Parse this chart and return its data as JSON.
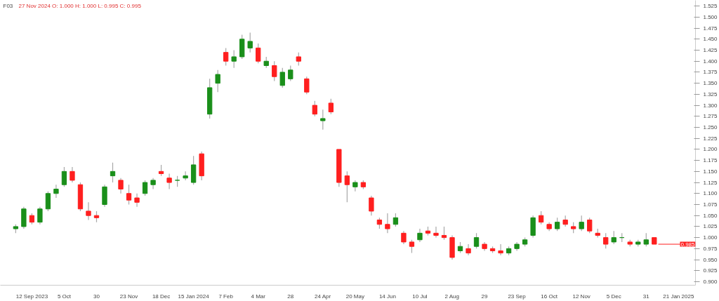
{
  "chart_data": {
    "type": "candlestick",
    "title": "F03",
    "subtitle": "27 Nov 2024   O: 1.000   H: 1.000   L: 0.995   C: 0.995",
    "categories": [
      null,
      null,
      "12 Sep 2023",
      null,
      null,
      null,
      "5 Oct",
      null,
      null,
      null,
      "30",
      null,
      null,
      null,
      "23 Nov",
      null,
      null,
      null,
      "18 Dec",
      null,
      null,
      null,
      "15 Jan 2024",
      null,
      null,
      null,
      "7 Feb",
      null,
      null,
      null,
      "4 Mar",
      null,
      null,
      null,
      "28",
      null,
      null,
      null,
      "24 Apr",
      null,
      null,
      null,
      "20 May",
      null,
      null,
      null,
      "14 Jun",
      null,
      null,
      null,
      "10 Jul",
      null,
      null,
      null,
      "2 Aug",
      null,
      null,
      null,
      "29",
      null,
      null,
      null,
      "23 Sep",
      null,
      null,
      null,
      "16 Oct",
      null,
      null,
      null,
      "12 Nov",
      null,
      null,
      null,
      "5 Dec",
      null,
      null,
      null,
      "31",
      null,
      null,
      null,
      "21 Jan 2025"
    ],
    "ohlc": [
      [
        1.02,
        1.03,
        1.01,
        1.025
      ],
      [
        1.025,
        1.07,
        1.02,
        1.065
      ],
      [
        1.05,
        1.055,
        1.03,
        1.035
      ],
      [
        1.035,
        1.07,
        1.03,
        1.065
      ],
      [
        1.065,
        1.105,
        1.06,
        1.1
      ],
      [
        1.1,
        1.12,
        1.09,
        1.11
      ],
      [
        1.12,
        1.16,
        1.115,
        1.15
      ],
      [
        1.15,
        1.16,
        1.125,
        1.13
      ],
      [
        1.12,
        1.125,
        1.06,
        1.065
      ],
      [
        1.06,
        1.08,
        1.04,
        1.05
      ],
      [
        1.05,
        1.06,
        1.035,
        1.045
      ],
      [
        1.075,
        1.12,
        1.07,
        1.115
      ],
      [
        1.14,
        1.17,
        1.125,
        1.15
      ],
      [
        1.13,
        1.135,
        1.1,
        1.11
      ],
      [
        1.1,
        1.12,
        1.075,
        1.085
      ],
      [
        1.09,
        1.1,
        1.07,
        1.08
      ],
      [
        1.1,
        1.13,
        1.095,
        1.125
      ],
      [
        1.12,
        1.135,
        1.11,
        1.13
      ],
      [
        1.15,
        1.165,
        1.14,
        1.145
      ],
      [
        1.135,
        1.145,
        1.11,
        1.125
      ],
      [
        1.13,
        1.14,
        1.115,
        1.13
      ],
      [
        1.135,
        1.15,
        1.13,
        1.14
      ],
      [
        1.125,
        1.185,
        1.12,
        1.165
      ],
      [
        1.19,
        1.195,
        1.13,
        1.14
      ],
      [
        1.28,
        1.36,
        1.27,
        1.34
      ],
      [
        1.35,
        1.38,
        1.33,
        1.37
      ],
      [
        1.42,
        1.43,
        1.39,
        1.4
      ],
      [
        1.4,
        1.425,
        1.385,
        1.41
      ],
      [
        1.41,
        1.46,
        1.405,
        1.45
      ],
      [
        1.43,
        1.465,
        1.42,
        1.445
      ],
      [
        1.43,
        1.44,
        1.395,
        1.4
      ],
      [
        1.39,
        1.41,
        1.385,
        1.4
      ],
      [
        1.39,
        1.4,
        1.355,
        1.365
      ],
      [
        1.345,
        1.385,
        1.34,
        1.375
      ],
      [
        1.36,
        1.39,
        1.355,
        1.38
      ],
      [
        1.41,
        1.42,
        1.39,
        1.4
      ],
      [
        1.36,
        1.365,
        1.325,
        1.33
      ],
      [
        1.3,
        1.31,
        1.275,
        1.28
      ],
      [
        1.265,
        1.29,
        1.245,
        1.27
      ],
      [
        1.305,
        1.315,
        1.28,
        1.285
      ],
      [
        1.2,
        1.2,
        1.115,
        1.125
      ],
      [
        1.14,
        1.15,
        1.08,
        1.12
      ],
      [
        1.115,
        1.13,
        1.105,
        1.125
      ],
      [
        1.125,
        1.13,
        1.11,
        1.115
      ],
      [
        1.09,
        1.095,
        1.05,
        1.06
      ],
      [
        1.04,
        1.045,
        1.02,
        1.03
      ],
      [
        1.03,
        1.055,
        1.01,
        1.02
      ],
      [
        1.03,
        1.055,
        1.025,
        1.045
      ],
      [
        1.01,
        1.015,
        0.985,
        0.99
      ],
      [
        0.99,
        0.995,
        0.965,
        0.98
      ],
      [
        0.995,
        1.02,
        0.99,
        1.01
      ],
      [
        1.015,
        1.025,
        1.005,
        1.01
      ],
      [
        1.01,
        1.025,
        1.0,
        1.005
      ],
      [
        1.005,
        1.025,
        0.995,
        1.0
      ],
      [
        1.0,
        1.005,
        0.95,
        0.955
      ],
      [
        0.97,
        0.99,
        0.965,
        0.98
      ],
      [
        0.975,
        0.985,
        0.96,
        0.965
      ],
      [
        0.98,
        1.01,
        0.975,
        1.0
      ],
      [
        0.985,
        0.99,
        0.97,
        0.975
      ],
      [
        0.975,
        0.98,
        0.965,
        0.97
      ],
      [
        0.97,
        0.985,
        0.96,
        0.965
      ],
      [
        0.965,
        0.98,
        0.96,
        0.975
      ],
      [
        0.975,
        0.99,
        0.97,
        0.985
      ],
      [
        0.985,
        1.0,
        0.98,
        0.995
      ],
      [
        1.005,
        1.05,
        1.0,
        1.045
      ],
      [
        1.05,
        1.06,
        1.03,
        1.035
      ],
      [
        1.03,
        1.035,
        1.015,
        1.02
      ],
      [
        1.02,
        1.045,
        1.015,
        1.035
      ],
      [
        1.04,
        1.05,
        1.025,
        1.03
      ],
      [
        1.025,
        1.035,
        1.01,
        1.02
      ],
      [
        1.02,
        1.05,
        1.015,
        1.035
      ],
      [
        1.04,
        1.045,
        1.01,
        1.015
      ],
      [
        1.01,
        1.02,
        1.0,
        1.005
      ],
      [
        1.0,
        1.01,
        0.975,
        0.985
      ],
      [
        0.99,
        1.015,
        0.985,
        1.0
      ],
      [
        1.0,
        1.01,
        0.99,
        1.0
      ],
      [
        0.99,
        0.995,
        0.98,
        0.985
      ],
      [
        0.985,
        0.995,
        0.98,
        0.99
      ],
      [
        0.985,
        1.01,
        0.98,
        0.995
      ],
      [
        1.0,
        1.0,
        0.985,
        0.985
      ],
      null,
      null,
      null
    ],
    "colors": [
      "#1a8f1a",
      "#1a8f1a",
      "#ff1f1f",
      "#1a8f1a",
      "#1a8f1a",
      "#1a8f1a",
      "#1a8f1a",
      "#ff1f1f",
      "#ff1f1f",
      "#ff1f1f",
      "#ff1f1f",
      "#1a8f1a",
      "#1a8f1a",
      "#ff1f1f",
      "#ff1f1f",
      "#ff1f1f",
      "#1a8f1a",
      "#1a8f1a",
      "#ff1f1f",
      "#ff1f1f",
      "#1a8f1a",
      "#1a8f1a",
      "#1a8f1a",
      "#ff1f1f",
      "#1a8f1a",
      "#1a8f1a",
      "#ff1f1f",
      "#1a8f1a",
      "#1a8f1a",
      "#1a8f1a",
      "#ff1f1f",
      "#1a8f1a",
      "#ff1f1f",
      "#1a8f1a",
      "#1a8f1a",
      "#ff1f1f",
      "#ff1f1f",
      "#ff1f1f",
      "#1a8f1a",
      "#ff1f1f",
      "#ff1f1f",
      "#ff1f1f",
      "#1a8f1a",
      "#ff1f1f",
      "#ff1f1f",
      "#ff1f1f",
      "#ff1f1f",
      "#1a8f1a",
      "#ff1f1f",
      "#ff1f1f",
      "#1a8f1a",
      "#ff1f1f",
      "#ff1f1f",
      "#ff1f1f",
      "#ff1f1f",
      "#1a8f1a",
      "#ff1f1f",
      "#1a8f1a",
      "#ff1f1f",
      "#ff1f1f",
      "#ff1f1f",
      "#1a8f1a",
      "#1a8f1a",
      "#1a8f1a",
      "#1a8f1a",
      "#ff1f1f",
      "#ff1f1f",
      "#1a8f1a",
      "#ff1f1f",
      "#ff1f1f",
      "#1a8f1a",
      "#ff1f1f",
      "#ff1f1f",
      "#ff1f1f",
      "#1a8f1a",
      "#1a8f1a",
      "#ff1f1f",
      "#1a8f1a",
      "#1a8f1a",
      "#ff1f1f",
      null,
      null,
      null
    ],
    "ylim": [
      0.892,
      1.538
    ],
    "yticks": [
      {
        "value": 0.9,
        "label": "0.900"
      },
      {
        "value": 0.925,
        "label": "0.925"
      },
      {
        "value": 0.95,
        "label": "0.950"
      },
      {
        "value": 0.975,
        "label": "0.975"
      },
      {
        "value": 1.0,
        "label": "1.000"
      },
      {
        "value": 1.025,
        "label": "1.025"
      },
      {
        "value": 1.05,
        "label": "1.050"
      },
      {
        "value": 1.075,
        "label": "1.075"
      },
      {
        "value": 1.1,
        "label": "1.100"
      },
      {
        "value": 1.125,
        "label": "1.125"
      },
      {
        "value": 1.15,
        "label": "1.150"
      },
      {
        "value": 1.175,
        "label": "1.175"
      },
      {
        "value": 1.2,
        "label": "1.200"
      },
      {
        "value": 1.225,
        "label": "1.225"
      },
      {
        "value": 1.25,
        "label": "1.250"
      },
      {
        "value": 1.275,
        "label": "1.275"
      },
      {
        "value": 1.3,
        "label": "1.300"
      },
      {
        "value": 1.325,
        "label": "1.325"
      },
      {
        "value": 1.35,
        "label": "1.350"
      },
      {
        "value": 1.375,
        "label": "1.375"
      },
      {
        "value": 1.4,
        "label": "1.400"
      },
      {
        "value": 1.425,
        "label": "1.425"
      },
      {
        "value": 1.45,
        "label": "1.450"
      },
      {
        "value": 1.475,
        "label": "1.475"
      },
      {
        "value": 1.5,
        "label": "1.500"
      },
      {
        "value": 1.525,
        "label": "1.525"
      }
    ],
    "ref_lines": [
      {
        "axis": "y",
        "value": 0.985,
        "label": "0.985",
        "color": "#ff1f1f"
      }
    ],
    "grid": false
  }
}
